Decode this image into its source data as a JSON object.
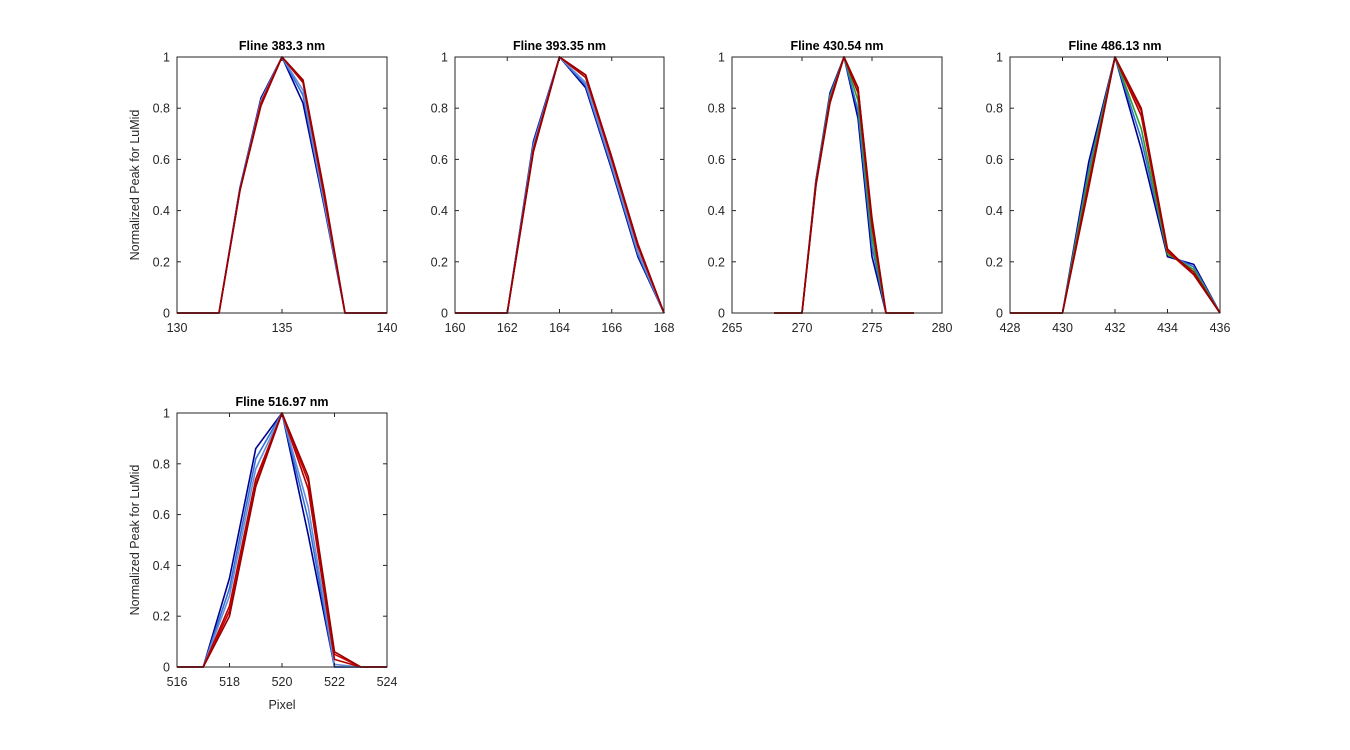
{
  "figure": {
    "background": "#ffffff",
    "axis_color": "#262626"
  },
  "chart_data": [
    {
      "type": "line",
      "title": "Fline 383.3 nm",
      "xlabel": "",
      "ylabel": "Normalized Peak for LuMid",
      "xlim": [
        130,
        140
      ],
      "ylim": [
        0,
        1
      ],
      "xticks": [
        "130",
        "135",
        "140"
      ],
      "yticks": [
        "0",
        "0.2",
        "0.4",
        "0.6",
        "0.8",
        "1"
      ],
      "x": [
        130,
        131,
        132,
        133,
        134,
        135,
        136,
        137,
        138,
        139,
        140
      ],
      "series": [
        {
          "color": "#00008f",
          "values": [
            0,
            0,
            0,
            0.49,
            0.84,
            1.0,
            0.82,
            0.42,
            0,
            0,
            0
          ]
        },
        {
          "color": "#2f6fd8",
          "values": [
            0,
            0,
            0,
            0.49,
            0.83,
            1.0,
            0.85,
            0.43,
            0,
            0,
            0
          ]
        },
        {
          "color": "#6a8fd8",
          "values": [
            0,
            0,
            0,
            0.48,
            0.83,
            1.0,
            0.87,
            0.44,
            0,
            0,
            0
          ]
        },
        {
          "color": "#b30000",
          "values": [
            0,
            0,
            0,
            0.48,
            0.82,
            1.0,
            0.9,
            0.46,
            0,
            0,
            0
          ]
        },
        {
          "color": "#cc0000",
          "values": [
            0,
            0,
            0,
            0.48,
            0.82,
            1.0,
            0.91,
            0.47,
            0,
            0,
            0
          ]
        },
        {
          "color": "#990000",
          "values": [
            0,
            0,
            0,
            0.48,
            0.81,
            1.0,
            0.91,
            0.48,
            0,
            0,
            0
          ]
        }
      ]
    },
    {
      "type": "line",
      "title": "Fline 393.35 nm",
      "xlabel": "",
      "ylabel": "",
      "xlim": [
        160,
        168
      ],
      "ylim": [
        0,
        1
      ],
      "xticks": [
        "160",
        "162",
        "164",
        "166",
        "168"
      ],
      "yticks": [
        "0",
        "0.2",
        "0.4",
        "0.6",
        "0.8",
        "1"
      ],
      "x": [
        160,
        161,
        162,
        163,
        164,
        165,
        166,
        167,
        168
      ],
      "series": [
        {
          "color": "#00008f",
          "values": [
            0,
            0,
            0,
            0.67,
            1.0,
            0.88,
            0.56,
            0.22,
            0
          ]
        },
        {
          "color": "#2f6fd8",
          "values": [
            0,
            0,
            0,
            0.66,
            1.0,
            0.89,
            0.57,
            0.23,
            0
          ]
        },
        {
          "color": "#6a8fd8",
          "values": [
            0,
            0,
            0,
            0.65,
            1.0,
            0.9,
            0.58,
            0.24,
            0
          ]
        },
        {
          "color": "#b30000",
          "values": [
            0,
            0,
            0,
            0.64,
            1.0,
            0.92,
            0.6,
            0.26,
            0
          ]
        },
        {
          "color": "#cc0000",
          "values": [
            0,
            0,
            0,
            0.63,
            1.0,
            0.93,
            0.6,
            0.27,
            0
          ]
        },
        {
          "color": "#990000",
          "values": [
            0,
            0,
            0,
            0.63,
            1.0,
            0.93,
            0.61,
            0.27,
            0
          ]
        }
      ]
    },
    {
      "type": "line",
      "title": "Fline 430.54 nm",
      "xlabel": "",
      "ylabel": "",
      "xlim": [
        265,
        280
      ],
      "ylim": [
        0,
        1
      ],
      "xticks": [
        "265",
        "270",
        "275",
        "280"
      ],
      "yticks": [
        "0",
        "0.2",
        "0.4",
        "0.6",
        "0.8",
        "1"
      ],
      "x": [
        268,
        269,
        270,
        271,
        272,
        273,
        274,
        275,
        276,
        277,
        278
      ],
      "series": [
        {
          "color": "#00008f",
          "values": [
            0,
            0,
            0,
            0.52,
            0.86,
            1.0,
            0.76,
            0.22,
            0,
            0,
            0
          ]
        },
        {
          "color": "#2f6fd8",
          "values": [
            0,
            0,
            0,
            0.52,
            0.85,
            1.0,
            0.79,
            0.26,
            0,
            0,
            0
          ]
        },
        {
          "color": "#2ca02c",
          "values": [
            0,
            0,
            0,
            0.51,
            0.84,
            1.0,
            0.83,
            0.3,
            0,
            0,
            0
          ]
        },
        {
          "color": "#b30000",
          "values": [
            0,
            0,
            0,
            0.51,
            0.83,
            1.0,
            0.86,
            0.34,
            0,
            0,
            0
          ]
        },
        {
          "color": "#cc0000",
          "values": [
            0,
            0,
            0,
            0.5,
            0.83,
            1.0,
            0.88,
            0.36,
            0,
            0,
            0
          ]
        },
        {
          "color": "#990000",
          "values": [
            0,
            0,
            0,
            0.5,
            0.82,
            1.0,
            0.88,
            0.37,
            0,
            0,
            0
          ]
        }
      ]
    },
    {
      "type": "line",
      "title": "Fline 486.13 nm",
      "xlabel": "",
      "ylabel": "",
      "xlim": [
        428,
        436
      ],
      "ylim": [
        0,
        1
      ],
      "xticks": [
        "428",
        "430",
        "432",
        "434",
        "436"
      ],
      "yticks": [
        "0",
        "0.2",
        "0.4",
        "0.6",
        "0.8",
        "1"
      ],
      "x": [
        428,
        429,
        430,
        431,
        432,
        433,
        434,
        435,
        436
      ],
      "series": [
        {
          "color": "#00008f",
          "values": [
            0,
            0,
            0,
            0.59,
            1.0,
            0.64,
            0.22,
            0.19,
            0
          ]
        },
        {
          "color": "#2f6fd8",
          "values": [
            0,
            0,
            0,
            0.56,
            1.0,
            0.68,
            0.23,
            0.18,
            0
          ]
        },
        {
          "color": "#2ca02c",
          "values": [
            0,
            0,
            0,
            0.54,
            1.0,
            0.72,
            0.23,
            0.17,
            0
          ]
        },
        {
          "color": "#b30000",
          "values": [
            0,
            0,
            0,
            0.51,
            1.0,
            0.77,
            0.24,
            0.16,
            0
          ]
        },
        {
          "color": "#cc0000",
          "values": [
            0,
            0,
            0,
            0.5,
            1.0,
            0.79,
            0.24,
            0.15,
            0
          ]
        },
        {
          "color": "#990000",
          "values": [
            0,
            0,
            0,
            0.49,
            1.0,
            0.8,
            0.25,
            0.15,
            0
          ]
        }
      ]
    },
    {
      "type": "line",
      "title": "Fline 516.97 nm",
      "xlabel": "Pixel",
      "ylabel": "Normalized Peak for LuMid",
      "xlim": [
        516,
        524
      ],
      "ylim": [
        0,
        1
      ],
      "xticks": [
        "516",
        "518",
        "520",
        "522",
        "524"
      ],
      "yticks": [
        "0",
        "0.2",
        "0.4",
        "0.6",
        "0.8",
        "1"
      ],
      "x": [
        516,
        517,
        518,
        519,
        520,
        521,
        522,
        523,
        524
      ],
      "series": [
        {
          "color": "#00008f",
          "values": [
            0,
            0,
            0.35,
            0.86,
            1.0,
            0.52,
            0,
            0,
            0
          ]
        },
        {
          "color": "#2f6fd8",
          "values": [
            0,
            0,
            0.31,
            0.82,
            1.0,
            0.58,
            0,
            0,
            0
          ]
        },
        {
          "color": "#6a8fd8",
          "values": [
            0,
            0,
            0.28,
            0.78,
            1.0,
            0.63,
            0.01,
            0,
            0
          ]
        },
        {
          "color": "#b30000",
          "values": [
            0,
            0,
            0.24,
            0.74,
            1.0,
            0.7,
            0.03,
            0,
            0
          ]
        },
        {
          "color": "#cc0000",
          "values": [
            0,
            0,
            0.22,
            0.72,
            1.0,
            0.73,
            0.05,
            0,
            0
          ]
        },
        {
          "color": "#990000",
          "values": [
            0,
            0,
            0.2,
            0.71,
            1.0,
            0.75,
            0.06,
            0,
            0
          ]
        }
      ]
    }
  ]
}
